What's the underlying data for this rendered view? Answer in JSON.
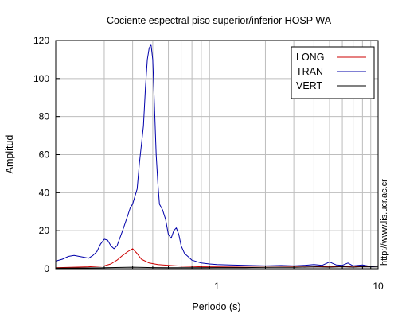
{
  "chart_data": {
    "type": "line",
    "title": "Cociente espectral piso superior/inferior  HOSP WA",
    "xlabel": "Periodo (s)",
    "ylabel": "Amplitud",
    "x_scale": "log",
    "xlim": [
      0.1,
      10
    ],
    "ylim": [
      0,
      120
    ],
    "x_ticks": [
      1,
      10
    ],
    "x_tick_labels": [
      "1",
      "10"
    ],
    "y_ticks": [
      0,
      20,
      40,
      60,
      80,
      100,
      120
    ],
    "y_tick_labels": [
      "0",
      "20",
      "40",
      "60",
      "80",
      "100",
      "120"
    ],
    "grid": true,
    "legend_position": "top-right",
    "credit": "http://www.lis.ucr.ac.cr",
    "series": [
      {
        "name": "LONG",
        "color": "#cc0000",
        "points": [
          [
            0.1,
            0.5
          ],
          [
            0.13,
            0.8
          ],
          [
            0.16,
            1.0
          ],
          [
            0.2,
            1.5
          ],
          [
            0.22,
            2.5
          ],
          [
            0.24,
            4.5
          ],
          [
            0.26,
            7
          ],
          [
            0.28,
            9
          ],
          [
            0.3,
            10.5
          ],
          [
            0.32,
            8
          ],
          [
            0.34,
            5
          ],
          [
            0.38,
            3
          ],
          [
            0.43,
            2.2
          ],
          [
            0.5,
            1.8
          ],
          [
            0.6,
            1.4
          ],
          [
            0.7,
            1.2
          ],
          [
            0.8,
            1.0
          ],
          [
            1.0,
            0.9
          ],
          [
            1.5,
            0.8
          ],
          [
            2,
            0.8
          ],
          [
            3,
            0.9
          ],
          [
            4,
            1.0
          ],
          [
            5,
            1.3
          ],
          [
            6,
            1.0
          ],
          [
            7,
            1.4
          ],
          [
            8,
            1.0
          ],
          [
            10,
            1.5
          ]
        ]
      },
      {
        "name": "TRAN",
        "color": "#0000aa",
        "points": [
          [
            0.1,
            4
          ],
          [
            0.11,
            5
          ],
          [
            0.12,
            6.5
          ],
          [
            0.13,
            7
          ],
          [
            0.14,
            6.5
          ],
          [
            0.15,
            6
          ],
          [
            0.16,
            5.5
          ],
          [
            0.17,
            7
          ],
          [
            0.18,
            9
          ],
          [
            0.19,
            13
          ],
          [
            0.2,
            15.5
          ],
          [
            0.21,
            15
          ],
          [
            0.22,
            12
          ],
          [
            0.23,
            10.5
          ],
          [
            0.24,
            12
          ],
          [
            0.26,
            20
          ],
          [
            0.28,
            28
          ],
          [
            0.29,
            32
          ],
          [
            0.3,
            34
          ],
          [
            0.32,
            42
          ],
          [
            0.33,
            55
          ],
          [
            0.34,
            65
          ],
          [
            0.35,
            75
          ],
          [
            0.36,
            95
          ],
          [
            0.37,
            110
          ],
          [
            0.38,
            116
          ],
          [
            0.39,
            118
          ],
          [
            0.4,
            110
          ],
          [
            0.41,
            85
          ],
          [
            0.42,
            60
          ],
          [
            0.43,
            45
          ],
          [
            0.44,
            34
          ],
          [
            0.46,
            31
          ],
          [
            0.48,
            26
          ],
          [
            0.5,
            18
          ],
          [
            0.52,
            16
          ],
          [
            0.54,
            20
          ],
          [
            0.56,
            21.5
          ],
          [
            0.58,
            18
          ],
          [
            0.6,
            12
          ],
          [
            0.63,
            8
          ],
          [
            0.67,
            6
          ],
          [
            0.7,
            4.5
          ],
          [
            0.8,
            3
          ],
          [
            0.9,
            2.5
          ],
          [
            1.0,
            2.2
          ],
          [
            1.2,
            2.0
          ],
          [
            1.5,
            1.8
          ],
          [
            2.0,
            1.5
          ],
          [
            2.5,
            1.7
          ],
          [
            3.0,
            1.5
          ],
          [
            3.5,
            1.8
          ],
          [
            4.0,
            2.2
          ],
          [
            4.5,
            1.8
          ],
          [
            5.0,
            3.5
          ],
          [
            5.5,
            2.0
          ],
          [
            6.0,
            1.8
          ],
          [
            6.5,
            3.0
          ],
          [
            7.0,
            1.5
          ],
          [
            8.0,
            2.0
          ],
          [
            9.0,
            1.2
          ],
          [
            10,
            1.5
          ]
        ]
      },
      {
        "name": "VERT",
        "color": "#000000",
        "points": [
          [
            0.1,
            0.3
          ],
          [
            0.2,
            0.5
          ],
          [
            0.3,
            0.8
          ],
          [
            0.4,
            0.6
          ],
          [
            0.5,
            0.5
          ],
          [
            0.7,
            0.5
          ],
          [
            1.0,
            0.6
          ],
          [
            1.5,
            0.6
          ],
          [
            2,
            0.7
          ],
          [
            3,
            0.7
          ],
          [
            4,
            0.9
          ],
          [
            5,
            0.8
          ],
          [
            6,
            1.0
          ],
          [
            7,
            0.8
          ],
          [
            8,
            1.0
          ],
          [
            10,
            0.9
          ]
        ]
      }
    ]
  }
}
